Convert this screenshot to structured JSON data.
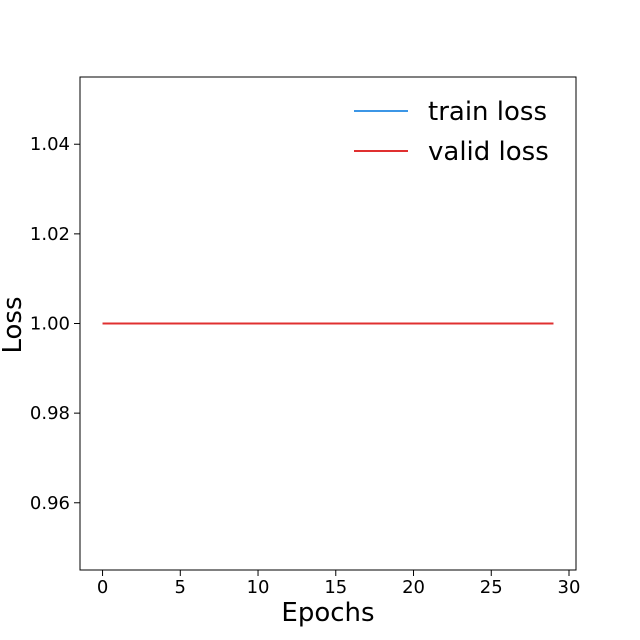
{
  "chart_data": {
    "type": "line",
    "title": "",
    "xlabel": "Epochs",
    "ylabel": "Loss",
    "xlim": [
      -1.45,
      30.45
    ],
    "ylim": [
      0.945,
      1.055
    ],
    "xticks": [
      0,
      5,
      10,
      15,
      20,
      25,
      30
    ],
    "xtick_labels": [
      "0",
      "5",
      "10",
      "15",
      "20",
      "25",
      "30"
    ],
    "yticks": [
      0.96,
      0.98,
      1.0,
      1.02,
      1.04
    ],
    "ytick_labels": [
      "0.96",
      "0.98",
      "1.00",
      "1.02",
      "1.04"
    ],
    "grid": false,
    "legend_position": "top-right",
    "x": [
      0,
      1,
      2,
      3,
      4,
      5,
      6,
      7,
      8,
      9,
      10,
      11,
      12,
      13,
      14,
      15,
      16,
      17,
      18,
      19,
      20,
      21,
      22,
      23,
      24,
      25,
      26,
      27,
      28,
      29
    ],
    "series": [
      {
        "name": "train loss",
        "color": "#3c96e6",
        "values": [
          1,
          1,
          1,
          1,
          1,
          1,
          1,
          1,
          1,
          1,
          1,
          1,
          1,
          1,
          1,
          1,
          1,
          1,
          1,
          1,
          1,
          1,
          1,
          1,
          1,
          1,
          1,
          1,
          1,
          1
        ]
      },
      {
        "name": "valid loss",
        "color": "#e03030",
        "values": [
          1,
          1,
          1,
          1,
          1,
          1,
          1,
          1,
          1,
          1,
          1,
          1,
          1,
          1,
          1,
          1,
          1,
          1,
          1,
          1,
          1,
          1,
          1,
          1,
          1,
          1,
          1,
          1,
          1,
          1
        ]
      }
    ]
  }
}
